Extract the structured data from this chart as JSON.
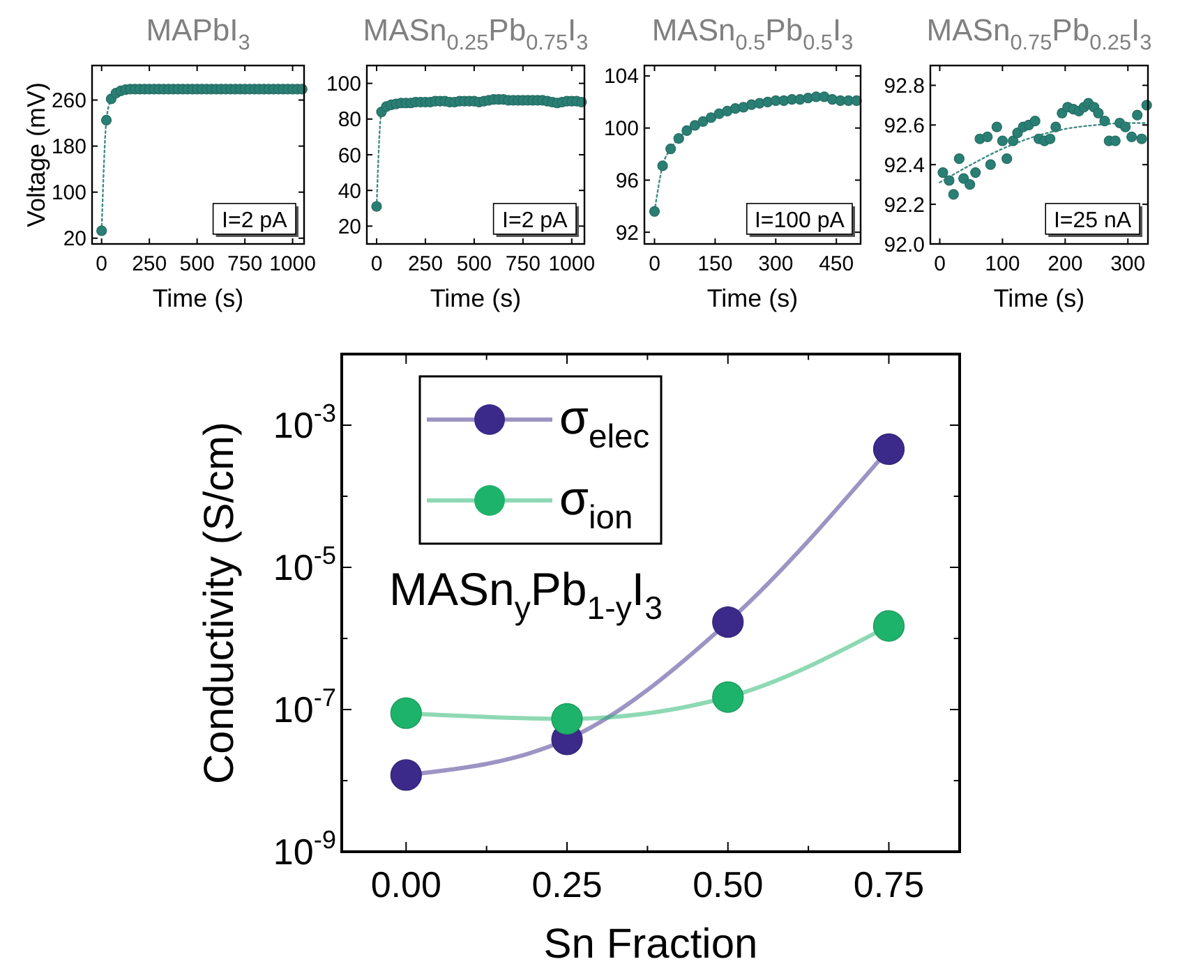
{
  "chart_data": [
    {
      "type": "line",
      "title": "MAPbI$_{3}$",
      "xlabel": "Time (s)",
      "ylabel": "Voltage (mV)",
      "line_style": "dotted",
      "marker": "circle",
      "annotations": [
        "I=2 pA"
      ],
      "xlim": [
        -50,
        1060
      ],
      "ylim": [
        10,
        320
      ],
      "xticks": [
        0,
        250,
        500,
        750,
        1000
      ],
      "yticks": [
        20,
        100,
        180,
        260
      ],
      "legend": false,
      "grid": false,
      "series": [
        {
          "color": "#2a7f74",
          "x": [
            0,
            25,
            50,
            75,
            100,
            125,
            150,
            175,
            200,
            225,
            250,
            275,
            300,
            325,
            350,
            375,
            400,
            425,
            450,
            475,
            500,
            525,
            550,
            575,
            600,
            625,
            650,
            675,
            700,
            725,
            750,
            775,
            800,
            825,
            850,
            875,
            900,
            925,
            950,
            975,
            1000,
            1025,
            1050
          ],
          "values": [
            33,
            225,
            262,
            272,
            276,
            278,
            279,
            279,
            279,
            279,
            279,
            279,
            279,
            279,
            279,
            279,
            279,
            279,
            279,
            279,
            279,
            279,
            279,
            279,
            279,
            279,
            279,
            279,
            279,
            279,
            279,
            279,
            279,
            279,
            279,
            279,
            279,
            279,
            279,
            279,
            279,
            279,
            279
          ]
        }
      ]
    },
    {
      "type": "line",
      "title": "MASn$_{0.25}$Pb$_{0.75}$I$_{3}$",
      "xlabel": "Time (s)",
      "line_style": "dotted",
      "marker": "circle",
      "annotations": [
        "I=2 pA"
      ],
      "xlim": [
        -50,
        1065
      ],
      "ylim": [
        10,
        110
      ],
      "xticks": [
        0,
        250,
        500,
        750,
        1000
      ],
      "yticks": [
        20,
        40,
        60,
        80,
        100
      ],
      "legend": false,
      "grid": false,
      "series": [
        {
          "color": "#2a7f74",
          "x": [
            0,
            25,
            50,
            75,
            100,
            125,
            150,
            175,
            200,
            225,
            250,
            275,
            300,
            325,
            350,
            375,
            400,
            425,
            450,
            475,
            500,
            525,
            550,
            575,
            600,
            625,
            650,
            675,
            700,
            725,
            750,
            775,
            800,
            825,
            850,
            875,
            900,
            925,
            950,
            975,
            1000,
            1025,
            1050
          ],
          "values": [
            31,
            84,
            87,
            88,
            88.5,
            89,
            89,
            89,
            89.5,
            89.5,
            89.5,
            89.5,
            90,
            90,
            90,
            89.5,
            89.5,
            90,
            90,
            90,
            90,
            89.5,
            90,
            90.5,
            91,
            91,
            91,
            90.5,
            90.5,
            90.5,
            90.5,
            90.5,
            90.5,
            90.5,
            90.5,
            90,
            89.5,
            89,
            89.5,
            90,
            90,
            90,
            89.5
          ]
        }
      ]
    },
    {
      "type": "line",
      "title": "MASn$_{0.5}$Pb$_{0.5}$I$_{3}$",
      "xlabel": "Time (s)",
      "line_style": "dotted",
      "marker": "circle",
      "annotations": [
        "I=100 pA"
      ],
      "xlim": [
        -25,
        510
      ],
      "ylim": [
        91.1,
        104.8
      ],
      "xticks": [
        0,
        150,
        300,
        450
      ],
      "yticks": [
        92,
        96,
        100,
        104
      ],
      "legend": false,
      "grid": false,
      "series": [
        {
          "color": "#2a7f74",
          "x": [
            0,
            20,
            40,
            60,
            80,
            100,
            120,
            140,
            160,
            180,
            200,
            220,
            240,
            260,
            280,
            300,
            320,
            340,
            360,
            380,
            400,
            420,
            440,
            460,
            480,
            500
          ],
          "values": [
            93.6,
            97.1,
            98.4,
            99.2,
            99.8,
            100.2,
            100.5,
            100.8,
            101.1,
            101.3,
            101.5,
            101.6,
            101.8,
            101.9,
            102.0,
            102.1,
            102.1,
            102.2,
            102.2,
            102.3,
            102.4,
            102.4,
            102.2,
            102.1,
            102.1,
            102.1
          ]
        }
      ]
    },
    {
      "type": "scatter",
      "title": "MASn$_{0.75}$Pb$_{0.25}$I$_{3}$",
      "xlabel": "Time (s)",
      "marker": "circle",
      "annotations": [
        "I=25 nA"
      ],
      "xlim": [
        -15,
        332
      ],
      "ylim": [
        92.0,
        92.9
      ],
      "xticks": [
        0,
        100,
        200,
        300
      ],
      "yticks": [
        {
          "value": 92,
          "label": "92.0"
        },
        92.2,
        92.4,
        92.6,
        92.8
      ],
      "legend": false,
      "grid": false,
      "series": [
        {
          "color": "#2a7f74",
          "x": [
            5,
            15,
            22,
            31,
            38,
            48,
            57,
            64,
            76,
            81,
            91,
            100,
            107,
            117,
            124,
            133,
            142,
            152,
            158,
            167,
            176,
            185,
            195,
            204,
            213,
            222,
            230,
            237,
            246,
            253,
            263,
            270,
            280,
            287,
            296,
            306,
            315,
            322,
            330
          ],
          "values": [
            92.36,
            92.32,
            92.25,
            92.43,
            92.33,
            92.3,
            92.36,
            92.53,
            92.54,
            92.4,
            92.59,
            92.52,
            92.43,
            92.52,
            92.56,
            92.59,
            92.6,
            92.62,
            92.53,
            92.52,
            92.53,
            92.59,
            92.66,
            92.69,
            92.68,
            92.67,
            92.69,
            92.71,
            92.69,
            92.66,
            92.62,
            92.52,
            92.52,
            92.61,
            92.59,
            92.54,
            92.65,
            92.53,
            92.7
          ]
        },
        {
          "type": "line",
          "line_style": "dotted",
          "marker": "none",
          "color": "#2a7f74",
          "x": [
            0,
            50,
            100,
            150,
            200,
            250,
            300,
            330
          ],
          "values": [
            92.31,
            92.4,
            92.48,
            92.54,
            92.58,
            92.6,
            92.61,
            92.61
          ]
        }
      ]
    },
    {
      "type": "line",
      "xlabel": "Sn Fraction",
      "ylabel": "Conductivity (S/cm)",
      "log": "y",
      "line_style": "solid",
      "marker": "circle",
      "legend": "top left",
      "grid": false,
      "annotations": [
        "MASn$_{y}$Pb$_{1-y}$I$_{3}$"
      ],
      "xlim": [
        -0.1,
        0.86
      ],
      "ylim": [
        1e-09,
        0.01
      ],
      "xticks": [
        {
          "value": 0,
          "label": "0.00"
        },
        {
          "value": 0.125,
          "label": null
        },
        {
          "value": 0.25,
          "label": "0.25"
        },
        {
          "value": 0.375,
          "label": null
        },
        {
          "value": 0.5,
          "label": "0.50"
        },
        {
          "value": 0.625,
          "label": null
        },
        {
          "value": 0.75,
          "label": "0.75"
        }
      ],
      "yticks": [
        {
          "value": 1e-09,
          "label": "10$^{-9}$"
        },
        {
          "value": 1e-08,
          "label": null
        },
        {
          "value": 1e-07,
          "label": "10$^{-7}$"
        },
        {
          "value": 1e-06,
          "label": null
        },
        {
          "value": 1e-05,
          "label": "10$^{-5}$"
        },
        {
          "value": 0.0001,
          "label": null
        },
        {
          "value": 0.001,
          "label": "10$^{-3}$"
        }
      ],
      "x": [
        0,
        0.25,
        0.5,
        0.75
      ],
      "series": [
        {
          "name": "σ$_{elec}$",
          "color": "#3b2a8a",
          "values": [
            1.2e-08,
            3.8e-08,
            1.7e-06,
            0.00046
          ]
        },
        {
          "name": "σ$_{ion}$",
          "color": "#1db36a",
          "values": [
            8.9e-08,
            7.4e-08,
            1.5e-07,
            1.5e-06
          ]
        }
      ]
    }
  ]
}
